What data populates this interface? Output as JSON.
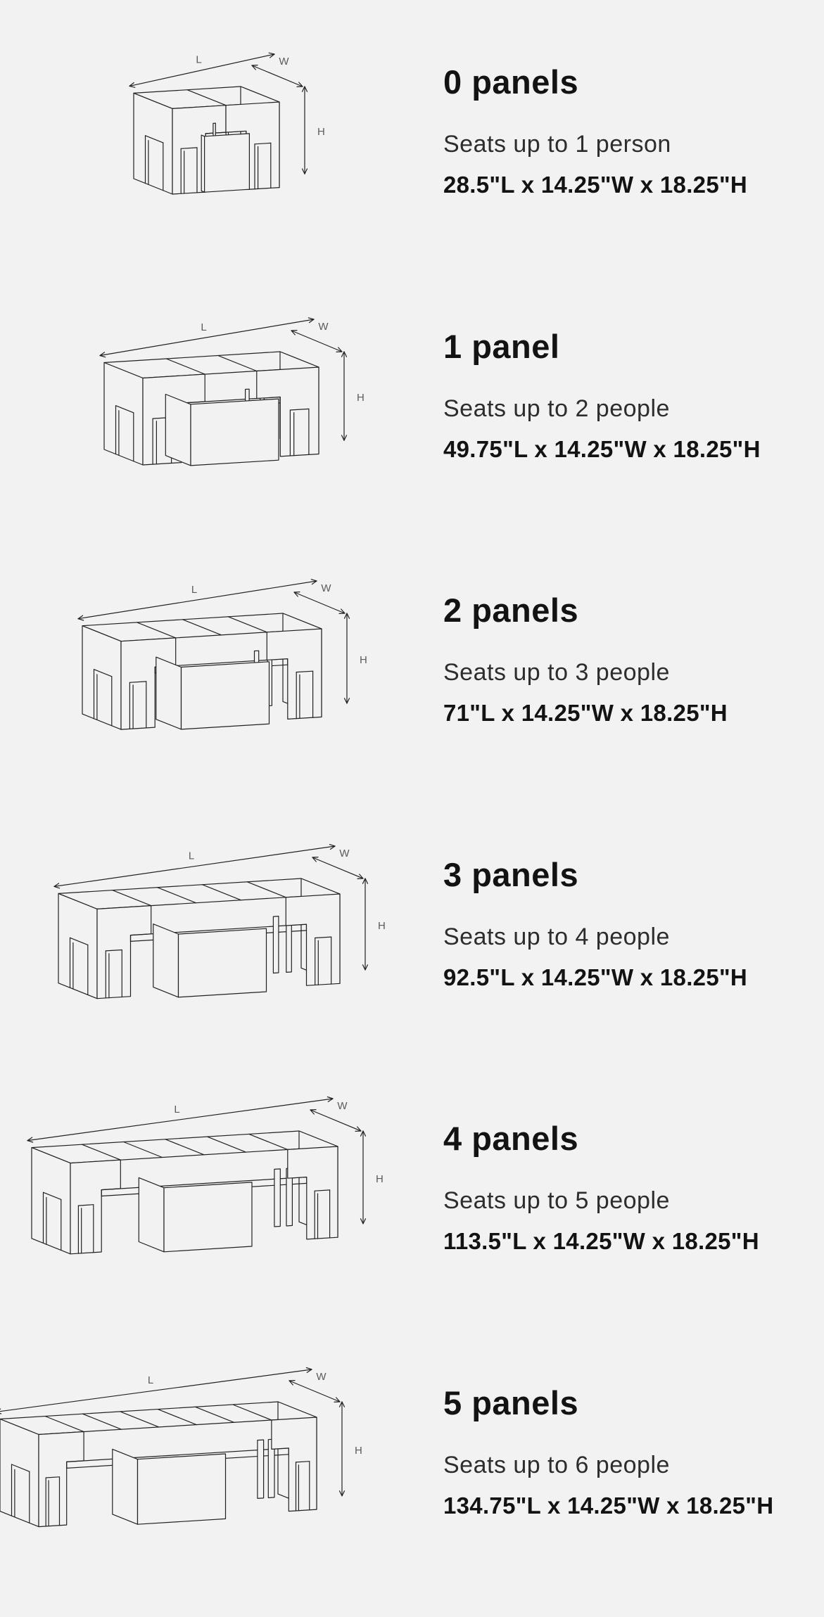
{
  "page": {
    "background_color": "#f2f2f2",
    "line_color": "#222222",
    "text_color": "#131313",
    "dim_label_color": "#5b5b5b"
  },
  "diagram_labels": {
    "length": "L",
    "width": "W",
    "height": "H"
  },
  "rows": [
    {
      "panels": 0,
      "title": "0 panels",
      "seats": "Seats up to 1 person",
      "dimensions": "28.5\"L x 14.25\"W x 18.25\"H"
    },
    {
      "panels": 1,
      "title": "1 panel",
      "seats": "Seats up to 2 people",
      "dimensions": "49.75\"L x 14.25\"W x 18.25\"H"
    },
    {
      "panels": 2,
      "title": "2 panels",
      "seats": "Seats up to 3 people",
      "dimensions": "71\"L x 14.25\"W x 18.25\"H"
    },
    {
      "panels": 3,
      "title": "3 panels",
      "seats": "Seats up to 4 people",
      "dimensions": "92.5\"L x 14.25\"W x 18.25\"H"
    },
    {
      "panels": 4,
      "title": "4 panels",
      "seats": "Seats up to 5 people",
      "dimensions": "113.5\"L x 14.25\"W x 18.25\"H"
    },
    {
      "panels": 5,
      "title": "5 panels",
      "seats": "Seats up to 6 people",
      "dimensions": "134.75\"L x 14.25\"W x 18.25\"H"
    }
  ]
}
